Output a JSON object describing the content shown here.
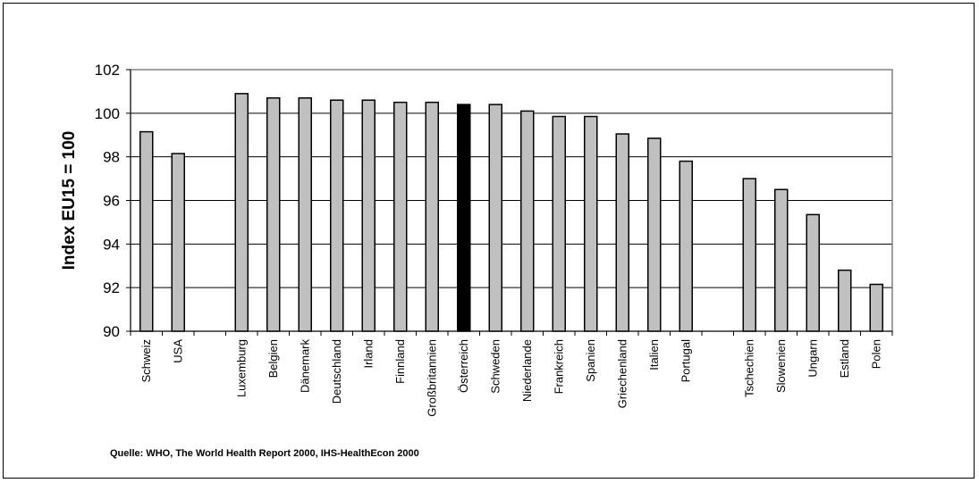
{
  "chart_data": {
    "type": "bar",
    "ylabel": "Index EU15 = 100",
    "xlabel": "",
    "title": "",
    "ylim": [
      90,
      102
    ],
    "yticks": [
      90,
      92,
      94,
      96,
      98,
      100,
      102
    ],
    "grid": true,
    "legend": "none",
    "categories": [
      "Schweiz",
      "USA",
      "",
      "Luxemburg",
      "Belgien",
      "Dänemark",
      "Deutschland",
      "Irland",
      "Finnland",
      "Großbritannien",
      "Österreich",
      "Schweden",
      "Niederlande",
      "Frankreich",
      "Spanien",
      "Griechenland",
      "Italien",
      "Portugal",
      "",
      "Tschechien",
      "Slowenien",
      "Ungarn",
      "Estland",
      "Polen"
    ],
    "values": [
      99.15,
      98.15,
      null,
      100.9,
      100.7,
      100.7,
      100.6,
      100.6,
      100.5,
      100.5,
      100.4,
      100.4,
      100.1,
      99.85,
      99.85,
      99.05,
      98.85,
      97.8,
      null,
      97.0,
      96.5,
      95.35,
      92.8,
      92.15
    ],
    "highlight": "Österreich",
    "colors": {
      "bar": "#c0c0c0",
      "highlight": "#000000",
      "stroke": "#000000",
      "plot_border": "#808080",
      "grid": "#000000"
    }
  },
  "source_note": "Quelle: WHO, The World Health Report 2000, IHS-HealthEcon 2000"
}
